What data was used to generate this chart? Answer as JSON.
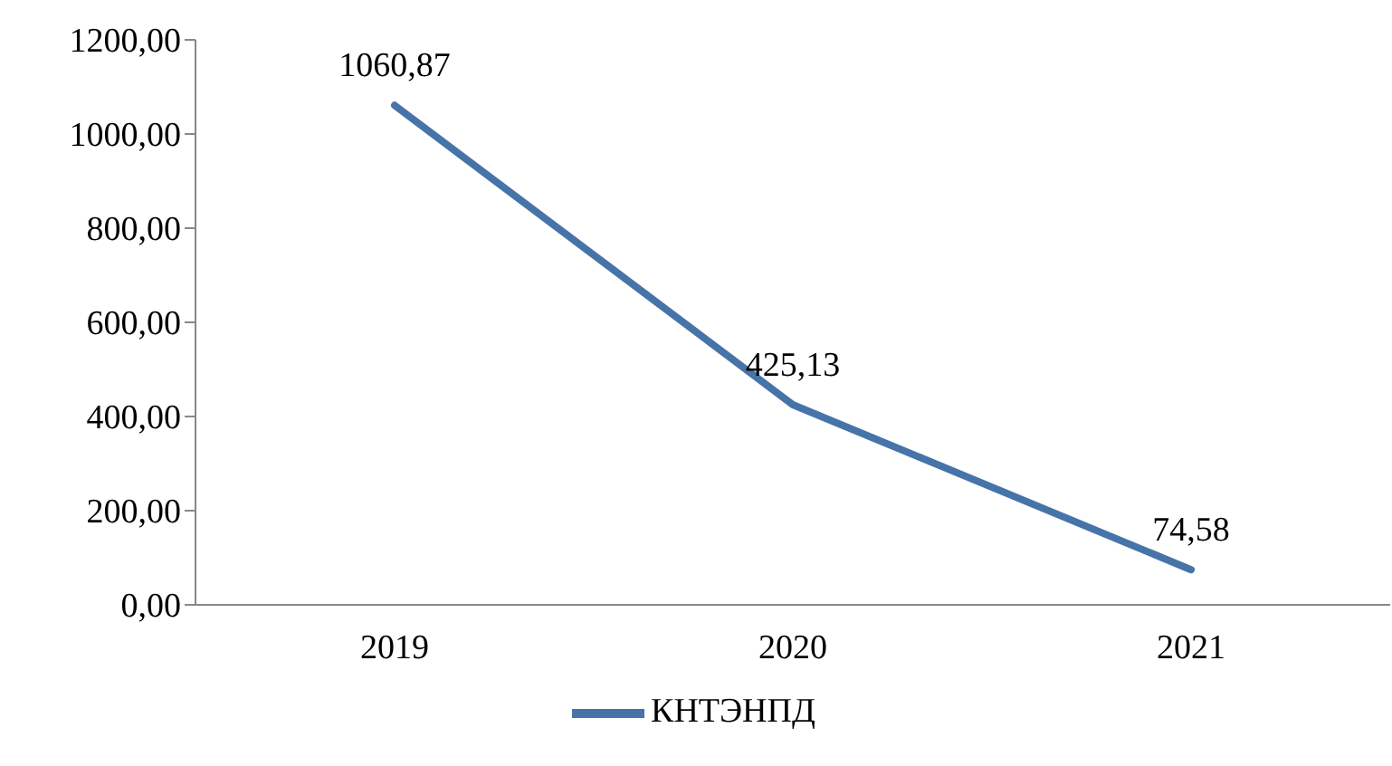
{
  "chart_data": {
    "type": "line",
    "categories": [
      "2019",
      "2020",
      "2021"
    ],
    "series": [
      {
        "name": "КНТЭНПД",
        "color": "#4674a8",
        "values": [
          1060.87,
          425.13,
          74.58
        ],
        "value_labels": [
          "1060,87",
          "425,13",
          "74,58"
        ]
      }
    ],
    "ylim": [
      0,
      1200
    ],
    "yticks": [
      {
        "value": 0,
        "label": "0,00"
      },
      {
        "value": 200,
        "label": "200,00"
      },
      {
        "value": 400,
        "label": "400,00"
      },
      {
        "value": 600,
        "label": "600,00"
      },
      {
        "value": 800,
        "label": "800,00"
      },
      {
        "value": 1000,
        "label": "1000,00"
      },
      {
        "value": 1200,
        "label": "1200,00"
      }
    ],
    "grid": false,
    "legend": "bottom",
    "marker": "none",
    "line_style": "solid"
  }
}
